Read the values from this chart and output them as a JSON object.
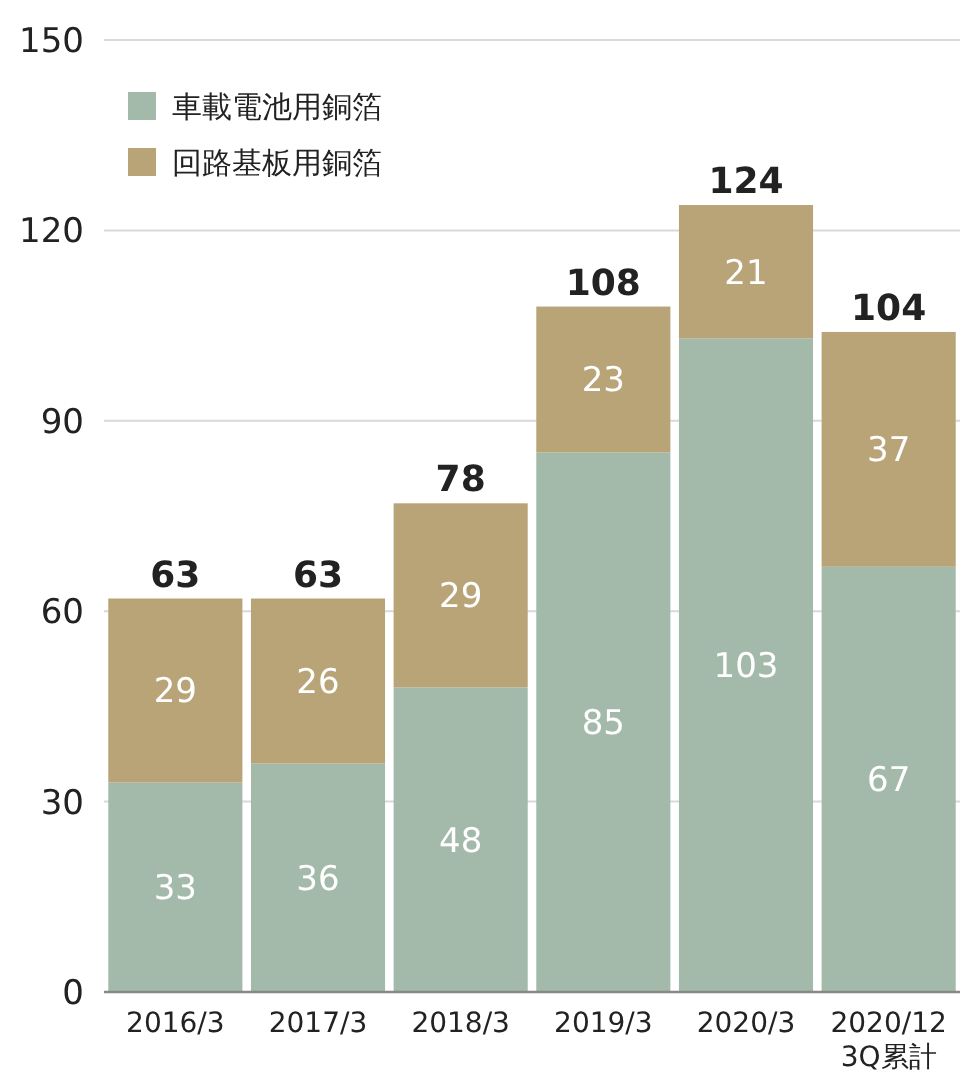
{
  "chart_data": {
    "type": "bar",
    "stacked": true,
    "categories": [
      "2016/3",
      "2017/3",
      "2018/3",
      "2019/3",
      "2020/3",
      "2020/12\n3Q累計"
    ],
    "series": [
      {
        "name": "車載電池用銅箔",
        "color": "#a3b9a9",
        "values": [
          33,
          36,
          48,
          85,
          103,
          67
        ]
      },
      {
        "name": "回路基板用銅箔",
        "color": "#b9a478",
        "values": [
          29,
          26,
          29,
          23,
          21,
          37
        ]
      }
    ],
    "ylim": [
      0,
      150
    ],
    "yticks": [
      0,
      30,
      60,
      90,
      120,
      150
    ],
    "grid": "y",
    "legend": "top left",
    "data_labels": true,
    "totals": [
      "63",
      "63",
      "78",
      "108",
      "124",
      "104"
    ]
  }
}
